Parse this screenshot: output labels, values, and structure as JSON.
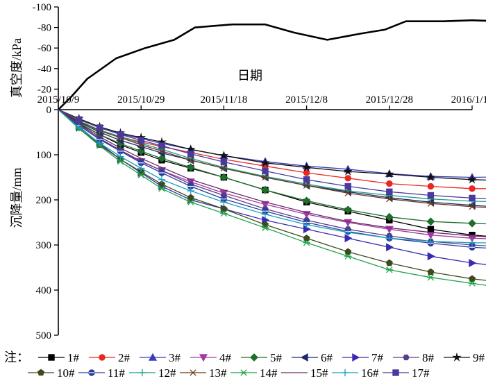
{
  "chart_data": [
    {
      "type": "line",
      "ylabel": "真空度/kPa",
      "xlabel": "日期",
      "y_ticks": [
        "-100",
        "-80",
        "-60",
        "-40",
        "-20",
        "0"
      ],
      "ylim": [
        -100,
        0
      ],
      "x_ticks": [
        "2015/10/9",
        "2015/10/29",
        "2015/11/18",
        "2015/12/8",
        "2015/12/28",
        "2016/1/17"
      ],
      "xlim": [
        "2015-10-09",
        "2016-01-17"
      ],
      "series": [
        {
          "color": "#000000",
          "points": [
            [
              0,
              0
            ],
            [
              3,
              -12
            ],
            [
              7,
              -30
            ],
            [
              14,
              -50
            ],
            [
              21,
              -60
            ],
            [
              28,
              -68
            ],
            [
              33,
              -80
            ],
            [
              42,
              -83
            ],
            [
              50,
              -83
            ],
            [
              57,
              -75
            ],
            [
              65,
              -68
            ],
            [
              73,
              -74
            ],
            [
              79,
              -78
            ],
            [
              84,
              -86
            ],
            [
              93,
              -86
            ],
            [
              100,
              -87
            ],
            [
              107,
              -86
            ],
            [
              114,
              -85
            ],
            [
              121,
              -86
            ],
            [
              128,
              -85
            ],
            [
              134,
              -87
            ]
          ]
        }
      ]
    },
    {
      "type": "line",
      "ylabel": "沉降量/mm",
      "y_ticks": [
        "100",
        "200",
        "300",
        "400",
        "500"
      ],
      "ylim": [
        0,
        500
      ],
      "x_days": [
        0,
        5,
        10,
        15,
        20,
        25,
        32,
        40,
        50,
        60,
        70,
        80,
        90,
        100,
        110,
        115,
        120,
        125,
        130,
        134
      ],
      "series": [
        {
          "name": "1#",
          "marker": "square",
          "color": "#000000",
          "values": [
            0,
            31,
            55,
            78,
            95,
            112,
            130,
            150,
            178,
            205,
            225,
            245,
            265,
            278,
            285,
            290,
            292,
            296,
            300,
            303
          ]
        },
        {
          "name": "2#",
          "marker": "circle",
          "color": "#E8291F",
          "values": [
            0,
            25,
            45,
            60,
            72,
            82,
            95,
            110,
            125,
            140,
            152,
            164,
            170,
            175,
            175,
            177,
            178,
            180,
            182,
            184
          ]
        },
        {
          "name": "3#",
          "marker": "triangle",
          "color": "#3A3DBA",
          "values": [
            0,
            22,
            40,
            54,
            64,
            75,
            88,
            102,
            115,
            125,
            132,
            142,
            148,
            150,
            149,
            150,
            152,
            153,
            154,
            155
          ]
        },
        {
          "name": "4#",
          "marker": "triangle-down",
          "color": "#A23AA2",
          "values": [
            0,
            35,
            65,
            92,
            115,
            135,
            160,
            185,
            210,
            232,
            250,
            265,
            278,
            285,
            288,
            290,
            292,
            293,
            294,
            295
          ]
        },
        {
          "name": "5#",
          "marker": "diamond",
          "color": "#1F6E2A",
          "values": [
            0,
            30,
            55,
            75,
            92,
            108,
            128,
            150,
            178,
            202,
            222,
            238,
            248,
            252,
            255,
            257,
            260,
            262,
            265,
            267
          ]
        },
        {
          "name": "6#",
          "marker": "tri-left",
          "color": "#1E2A6E",
          "values": [
            0,
            28,
            50,
            68,
            82,
            96,
            112,
            130,
            150,
            168,
            182,
            195,
            205,
            212,
            218,
            222,
            225,
            228,
            230,
            232
          ]
        },
        {
          "name": "7#",
          "marker": "tri-right",
          "color": "#3A2AB0",
          "values": [
            0,
            38,
            75,
            110,
            140,
            170,
            200,
            220,
            245,
            265,
            285,
            305,
            325,
            340,
            350,
            357,
            362,
            367,
            370,
            372
          ]
        },
        {
          "name": "8#",
          "marker": "hexagon",
          "color": "#5A3D8A",
          "values": [
            0,
            34,
            64,
            90,
            114,
            135,
            165,
            190,
            220,
            245,
            265,
            280,
            292,
            300,
            305,
            310,
            315,
            320,
            325,
            328
          ]
        },
        {
          "name": "9#",
          "marker": "star",
          "color": "#111111",
          "values": [
            0,
            20,
            38,
            52,
            62,
            72,
            88,
            102,
            118,
            128,
            137,
            143,
            150,
            155,
            158,
            160,
            161,
            162,
            164,
            165
          ]
        },
        {
          "name": "10#",
          "marker": "pentagon",
          "color": "#3E4A1C",
          "values": [
            0,
            40,
            78,
            110,
            138,
            165,
            195,
            220,
            255,
            285,
            315,
            340,
            360,
            375,
            385,
            390,
            395,
            400,
            403,
            405
          ]
        },
        {
          "name": "11#",
          "marker": "circle-line",
          "color": "#2A3D9E",
          "values": [
            0,
            35,
            66,
            92,
            118,
            140,
            170,
            198,
            225,
            250,
            270,
            285,
            296,
            305,
            310,
            315,
            320,
            325,
            329,
            332
          ]
        },
        {
          "name": "12#",
          "marker": "plus",
          "color": "#1C9E8A",
          "values": [
            0,
            25,
            45,
            60,
            75,
            88,
            108,
            128,
            148,
            165,
            180,
            190,
            198,
            203,
            205,
            208,
            210,
            212,
            213,
            215
          ]
        },
        {
          "name": "13#",
          "marker": "x",
          "color": "#6A3A1A",
          "values": [
            0,
            26,
            47,
            62,
            78,
            92,
            112,
            130,
            150,
            168,
            185,
            198,
            208,
            215,
            220,
            224,
            228,
            231,
            234,
            236
          ]
        },
        {
          "name": "14#",
          "marker": "asterisk",
          "color": "#1FA24A",
          "values": [
            0,
            42,
            80,
            115,
            145,
            175,
            205,
            230,
            262,
            295,
            325,
            355,
            372,
            385,
            398,
            405,
            410,
            415,
            418,
            420
          ]
        },
        {
          "name": "15#",
          "marker": "none",
          "color": "#6A2A6A",
          "values": [
            0,
            32,
            60,
            85,
            108,
            128,
            155,
            178,
            205,
            228,
            248,
            262,
            272,
            280,
            285,
            288,
            290,
            292,
            293,
            294
          ]
        },
        {
          "name": "16#",
          "marker": "plus",
          "color": "#1A9EC0",
          "values": [
            0,
            40,
            74,
            104,
            130,
            155,
            180,
            205,
            232,
            255,
            272,
            285,
            292,
            295,
            296,
            297,
            298,
            299,
            300,
            300
          ]
        },
        {
          "name": "17#",
          "marker": "square",
          "color": "#4A3A9E",
          "values": [
            0,
            22,
            40,
            55,
            68,
            80,
            98,
            116,
            136,
            155,
            170,
            182,
            190,
            196,
            200,
            204,
            207,
            209,
            211,
            212
          ]
        }
      ]
    }
  ],
  "note_label": "注："
}
